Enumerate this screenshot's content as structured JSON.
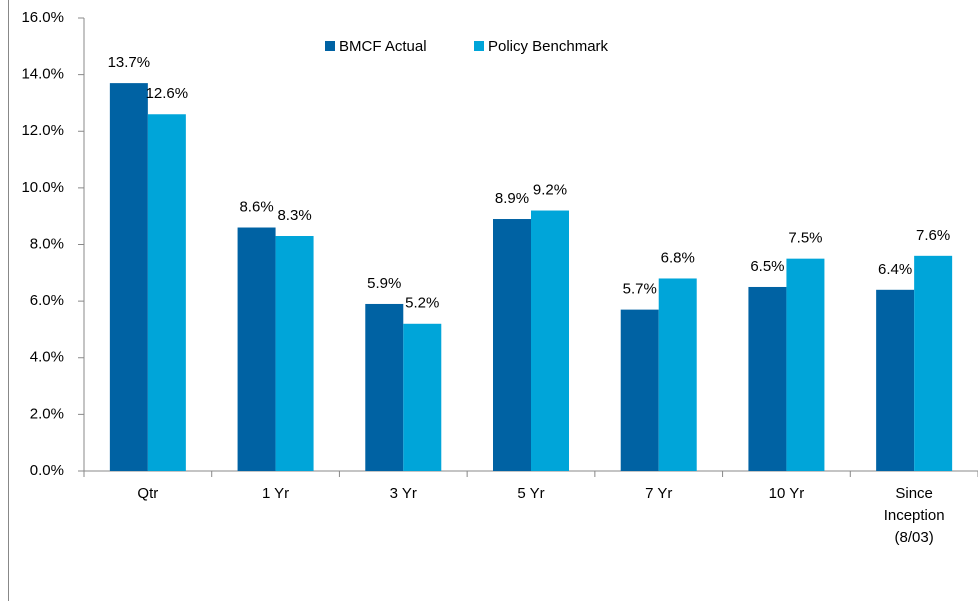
{
  "chart_data": {
    "type": "bar",
    "categories": [
      "Qtr",
      "1 Yr",
      "3 Yr",
      "5 Yr",
      "7 Yr",
      "10 Yr",
      "Since Inception (8/03)"
    ],
    "series": [
      {
        "name": "BMCF Actual",
        "color": "#0062a3",
        "values": [
          13.7,
          8.6,
          5.9,
          8.9,
          5.7,
          6.5,
          6.4
        ],
        "value_labels": [
          "13.7%",
          "8.6%",
          "5.9%",
          "8.9%",
          "5.7%",
          "6.5%",
          "6.4%"
        ]
      },
      {
        "name": "Policy Benchmark",
        "color": "#00a5d9",
        "values": [
          12.6,
          8.3,
          5.2,
          9.2,
          6.8,
          7.5,
          7.6
        ],
        "value_labels": [
          "12.6%",
          "8.3%",
          "5.2%",
          "9.2%",
          "6.8%",
          "7.5%",
          "7.6%"
        ]
      }
    ],
    "ylim": [
      0,
      16
    ],
    "yticks": [
      {
        "value": 0,
        "label": "0.0%"
      },
      {
        "value": 2,
        "label": "2.0%"
      },
      {
        "value": 4,
        "label": "4.0%"
      },
      {
        "value": 6,
        "label": "6.0%"
      },
      {
        "value": 8,
        "label": "8.0%"
      },
      {
        "value": 10,
        "label": "10.0%"
      },
      {
        "value": 12,
        "label": "12.0%"
      },
      {
        "value": 14,
        "label": "14.0%"
      },
      {
        "value": 16,
        "label": "16.0%"
      }
    ],
    "grid": false,
    "legend": "top"
  }
}
